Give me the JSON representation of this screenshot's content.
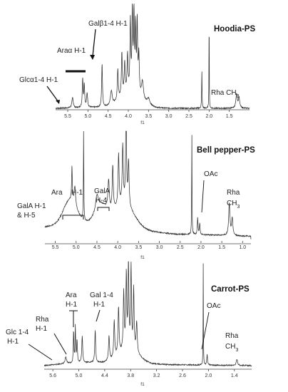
{
  "chart_data": [
    {
      "type": "line",
      "title": "Hoodia-PS",
      "xlabel": "f1",
      "xlim": [
        5.8,
        1.0
      ],
      "x_ticks": [
        "5.5",
        "5.0",
        "4.5",
        "4.0",
        "3.5",
        "3.0",
        "2.5",
        "2.0",
        "1.5"
      ],
      "tick_values": [
        5.5,
        5.0,
        4.5,
        4.0,
        3.5,
        3.0,
        2.5,
        2.0,
        1.5
      ],
      "peaks": [
        {
          "x": 5.38,
          "h": 0.1,
          "w": 0.02
        },
        {
          "x": 5.13,
          "h": 0.28,
          "w": 0.012
        },
        {
          "x": 5.09,
          "h": 0.22,
          "w": 0.012
        },
        {
          "x": 5.02,
          "h": 0.14,
          "w": 0.015
        },
        {
          "x": 4.65,
          "h": 0.42,
          "w": 0.012
        },
        {
          "x": 4.42,
          "h": 0.14,
          "w": 0.025
        },
        {
          "x": 4.26,
          "h": 0.3,
          "w": 0.014
        },
        {
          "x": 4.16,
          "h": 0.42,
          "w": 0.014
        },
        {
          "x": 4.09,
          "h": 0.3,
          "w": 0.014
        },
        {
          "x": 4.02,
          "h": 0.36,
          "w": 0.014
        },
        {
          "x": 3.95,
          "h": 0.68,
          "w": 0.012
        },
        {
          "x": 3.9,
          "h": 0.8,
          "w": 0.012
        },
        {
          "x": 3.86,
          "h": 0.74,
          "w": 0.012
        },
        {
          "x": 3.82,
          "h": 0.62,
          "w": 0.012
        },
        {
          "x": 3.78,
          "h": 0.68,
          "w": 0.012
        },
        {
          "x": 3.74,
          "h": 0.38,
          "w": 0.014
        },
        {
          "x": 3.65,
          "h": 0.18,
          "w": 0.03
        },
        {
          "x": 3.5,
          "h": 0.06,
          "w": 0.04
        },
        {
          "x": 2.18,
          "h": 0.38,
          "w": 0.006
        },
        {
          "x": 2.0,
          "h": 1.0,
          "w": 0.004
        },
        {
          "x": 1.32,
          "h": 0.14,
          "w": 0.02
        },
        {
          "x": 1.26,
          "h": 0.1,
          "w": 0.02
        }
      ],
      "broad": [
        {
          "x": 3.95,
          "h": 0.14,
          "w": 0.35
        }
      ],
      "annotations": [
        {
          "text": "Glcα1-4 H-1"
        },
        {
          "text": "Araα H-1"
        },
        {
          "text": "Galβ1-4 H-1"
        },
        {
          "text": "Rha CH3"
        }
      ]
    },
    {
      "type": "line",
      "title": "Bell pepper-PS",
      "xlabel": "f1",
      "xlim": [
        5.75,
        0.8
      ],
      "x_ticks": [
        "5.5",
        "5.0",
        "4.5",
        "4.0",
        "3.5",
        "3.0",
        "2.5",
        "2.0",
        "1.5",
        "1.0"
      ],
      "tick_values": [
        5.5,
        5.0,
        4.5,
        4.0,
        3.5,
        3.0,
        2.5,
        2.0,
        1.5,
        1.0
      ],
      "peaks": [
        {
          "x": 5.1,
          "h": 0.32,
          "w": 0.01
        },
        {
          "x": 5.03,
          "h": 0.18,
          "w": 0.02
        },
        {
          "x": 4.82,
          "h": 1.0,
          "w": 0.005
        },
        {
          "x": 4.5,
          "h": 0.14,
          "w": 0.04
        },
        {
          "x": 4.22,
          "h": 0.28,
          "w": 0.02
        },
        {
          "x": 4.12,
          "h": 0.42,
          "w": 0.015
        },
        {
          "x": 3.98,
          "h": 0.48,
          "w": 0.015
        },
        {
          "x": 3.88,
          "h": 0.55,
          "w": 0.015
        },
        {
          "x": 3.8,
          "h": 0.95,
          "w": 0.012
        },
        {
          "x": 3.74,
          "h": 0.42,
          "w": 0.015
        },
        {
          "x": 2.22,
          "h": 0.97,
          "w": 0.005
        },
        {
          "x": 2.08,
          "h": 0.16,
          "w": 0.01
        },
        {
          "x": 2.03,
          "h": 0.11,
          "w": 0.01
        },
        {
          "x": 1.32,
          "h": 0.3,
          "w": 0.018
        },
        {
          "x": 1.25,
          "h": 0.16,
          "w": 0.018
        }
      ],
      "broad": [
        {
          "x": 5.15,
          "h": 0.22,
          "w": 0.22
        },
        {
          "x": 4.4,
          "h": 0.16,
          "w": 0.2
        },
        {
          "x": 3.85,
          "h": 0.22,
          "w": 0.35
        }
      ],
      "annotations": [
        {
          "text": "Ara"
        },
        {
          "text": "H-1"
        },
        {
          "text": "GalA H-1"
        },
        {
          "text": "& H-5"
        },
        {
          "text": "GalA"
        },
        {
          "text": "H-4"
        },
        {
          "text": "OAc"
        },
        {
          "text": "Rha"
        },
        {
          "text": "CH3"
        }
      ]
    },
    {
      "type": "line",
      "title": "Carrot-PS",
      "xlabel": "f1",
      "xlim": [
        5.8,
        1.0
      ],
      "x_ticks": [
        "5.6",
        "5.0",
        "4.4",
        "3.8",
        "3.2",
        "2.6",
        "2.0",
        "1.4"
      ],
      "tick_values": [
        5.6,
        5.0,
        4.4,
        3.8,
        3.2,
        2.6,
        2.0,
        1.4
      ],
      "peaks": [
        {
          "x": 5.3,
          "h": 0.06,
          "w": 0.02
        },
        {
          "x": 5.12,
          "h": 0.32,
          "w": 0.008
        },
        {
          "x": 5.08,
          "h": 0.36,
          "w": 0.008
        },
        {
          "x": 5.04,
          "h": 0.22,
          "w": 0.01
        },
        {
          "x": 4.92,
          "h": 0.26,
          "w": 0.012
        },
        {
          "x": 4.62,
          "h": 0.32,
          "w": 0.012
        },
        {
          "x": 4.3,
          "h": 0.24,
          "w": 0.015
        },
        {
          "x": 4.18,
          "h": 0.36,
          "w": 0.014
        },
        {
          "x": 4.08,
          "h": 0.46,
          "w": 0.014
        },
        {
          "x": 3.96,
          "h": 0.56,
          "w": 0.013
        },
        {
          "x": 3.9,
          "h": 0.72,
          "w": 0.012
        },
        {
          "x": 3.85,
          "h": 0.88,
          "w": 0.011
        },
        {
          "x": 3.79,
          "h": 0.82,
          "w": 0.011
        },
        {
          "x": 3.73,
          "h": 0.6,
          "w": 0.012
        },
        {
          "x": 3.66,
          "h": 0.3,
          "w": 0.015
        },
        {
          "x": 2.12,
          "h": 1.0,
          "w": 0.004
        },
        {
          "x": 2.03,
          "h": 0.1,
          "w": 0.01
        },
        {
          "x": 1.34,
          "h": 0.06,
          "w": 0.018
        }
      ],
      "broad": [
        {
          "x": 3.85,
          "h": 0.14,
          "w": 0.32
        }
      ],
      "annotations": [
        {
          "text": "Ara"
        },
        {
          "text": "H-1"
        },
        {
          "text": "Gal  1-4"
        },
        {
          "text": "H-1"
        },
        {
          "text": "Rha"
        },
        {
          "text": "H-1"
        },
        {
          "text": "Glc  1-4"
        },
        {
          "text": "H-1"
        },
        {
          "text": "OAc"
        },
        {
          "text": "Rha"
        },
        {
          "text": "CH3"
        }
      ]
    }
  ]
}
